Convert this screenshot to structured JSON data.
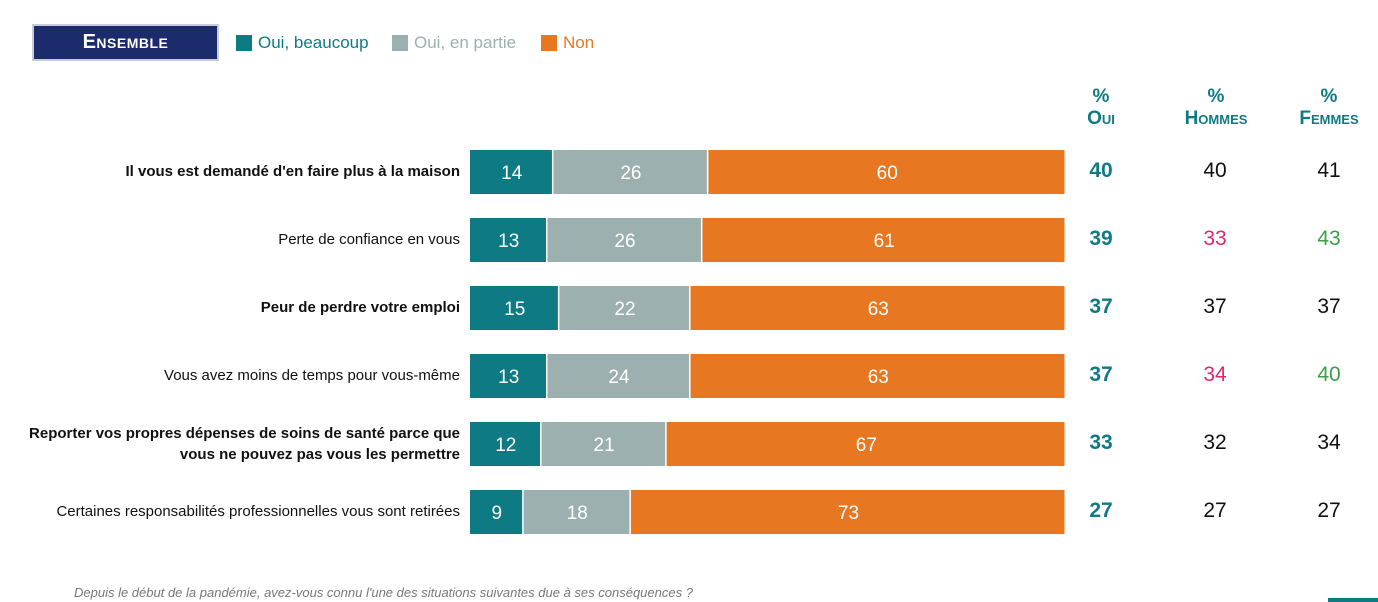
{
  "badge": "Ensemble",
  "colors": {
    "badge_bg": "#1c2b6b",
    "teal": "#0e7b84",
    "grey": "#9db0b0",
    "orange": "#e87722",
    "pink": "#e0266f",
    "green": "#3aa047"
  },
  "legend": [
    {
      "label": "Oui, beaucoup",
      "color": "#0e7b84"
    },
    {
      "label": "Oui, en partie",
      "color": "#9db0b0"
    },
    {
      "label": "Non",
      "color": "#e87722"
    }
  ],
  "columns": {
    "oui": {
      "pct": "%",
      "name": "Oui"
    },
    "hommes": {
      "pct": "%",
      "name": "Hommes"
    },
    "femmes": {
      "pct": "%",
      "name": "Femmes"
    }
  },
  "rows": [
    {
      "label": "Il vous est demandé d'en faire plus à la maison",
      "bold": true,
      "oui": "40",
      "hommes": "40",
      "femmes": "41",
      "hommes_color": "#111111",
      "femmes_color": "#111111"
    },
    {
      "label": "Perte de confiance en vous",
      "bold": false,
      "oui": "39",
      "hommes": "33",
      "femmes": "43",
      "hommes_color": "#e0266f",
      "femmes_color": "#3aa047"
    },
    {
      "label": "Peur de perdre votre emploi",
      "bold": true,
      "oui": "37",
      "hommes": "37",
      "femmes": "37",
      "hommes_color": "#111111",
      "femmes_color": "#111111"
    },
    {
      "label": "Vous avez moins de temps pour vous-même",
      "bold": false,
      "oui": "37",
      "hommes": "34",
      "femmes": "40",
      "hommes_color": "#e0266f",
      "femmes_color": "#3aa047"
    },
    {
      "label": "Reporter vos propres dépenses de soins de santé parce que vous ne pouvez pas vous les permettre",
      "bold": true,
      "oui": "33",
      "hommes": "32",
      "femmes": "34",
      "hommes_color": "#111111",
      "femmes_color": "#111111"
    },
    {
      "label": "Certaines responsabilités professionnelles vous sont retirées",
      "bold": false,
      "oui": "27",
      "hommes": "27",
      "femmes": "27",
      "hommes_color": "#111111",
      "femmes_color": "#111111"
    }
  ],
  "chart_data": {
    "type": "bar",
    "orientation": "horizontal",
    "stacked": true,
    "categories": [
      "Il vous est demandé d'en faire plus à la maison",
      "Perte de confiance en vous",
      "Peur de perdre votre emploi",
      "Vous avez moins de temps pour vous-même",
      "Reporter vos propres dépenses de soins de santé parce que vous ne pouvez pas vous les permettre",
      "Certaines responsabilités professionnelles vous sont retirées"
    ],
    "series": [
      {
        "name": "Oui, beaucoup",
        "values": [
          14,
          13,
          15,
          13,
          12,
          9
        ]
      },
      {
        "name": "Oui, en partie",
        "values": [
          26,
          26,
          22,
          24,
          21,
          18
        ]
      },
      {
        "name": "Non",
        "values": [
          60,
          61,
          63,
          63,
          67,
          73
        ]
      }
    ],
    "xlim": [
      0,
      100
    ],
    "legend": "top-left",
    "grid": false
  },
  "footnote": "Depuis le début de la pandémie, avez-vous connu l'une des situations suivantes due à ses conséquences ?"
}
